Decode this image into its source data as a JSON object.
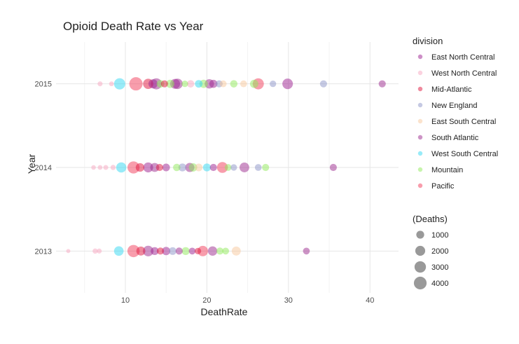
{
  "chart_data": {
    "type": "scatter",
    "title": "Opioid Death Rate vs Year",
    "xlabel": "DeathRate",
    "ylabel": "Year",
    "xlim": [
      1.5,
      43.5
    ],
    "xticks": [
      10,
      20,
      30,
      40
    ],
    "xtick_labels": [
      "10",
      "20",
      "30",
      "40"
    ],
    "y_categories": [
      "2013",
      "2014",
      "2015"
    ],
    "grid": true,
    "legend_position": "right",
    "color_legend_title": "division",
    "size_legend_title": "(Deaths)",
    "size_legend": [
      {
        "label": "1000",
        "value": 1000
      },
      {
        "label": "2000",
        "value": 2000
      },
      {
        "label": "3000",
        "value": 3000
      },
      {
        "label": "4000",
        "value": 4000
      }
    ],
    "divisions": [
      {
        "name": "East North Central",
        "color": "#9c1f8f"
      },
      {
        "name": "West North Central",
        "color": "#f7a5c0"
      },
      {
        "name": "Mid-Atlantic",
        "color": "#e0143c"
      },
      {
        "name": "New England",
        "color": "#8c94c8"
      },
      {
        "name": "East South Central",
        "color": "#f7c79c"
      },
      {
        "name": "South Atlantic",
        "color": "#9c2a8e"
      },
      {
        "name": "West South Central",
        "color": "#31d8f2"
      },
      {
        "name": "Mountain",
        "color": "#8fea5a"
      },
      {
        "name": "Pacific",
        "color": "#f23c5a"
      }
    ],
    "points": [
      {
        "year": "2015",
        "x": 6.9,
        "deaths": 150,
        "division": "West North Central"
      },
      {
        "year": "2015",
        "x": 8.3,
        "deaths": 120,
        "division": "West North Central"
      },
      {
        "year": "2015",
        "x": 9.3,
        "deaths": 2900,
        "division": "West South Central"
      },
      {
        "year": "2015",
        "x": 11.3,
        "deaths": 4500,
        "division": "Pacific"
      },
      {
        "year": "2015",
        "x": 12.8,
        "deaths": 2200,
        "division": "Mid-Atlantic"
      },
      {
        "year": "2015",
        "x": 13.4,
        "deaths": 1600,
        "division": "East North Central"
      },
      {
        "year": "2015",
        "x": 13.8,
        "deaths": 2800,
        "division": "South Atlantic"
      },
      {
        "year": "2015",
        "x": 14.3,
        "deaths": 900,
        "division": "Mountain"
      },
      {
        "year": "2015",
        "x": 14.8,
        "deaths": 700,
        "division": "Mid-Atlantic"
      },
      {
        "year": "2015",
        "x": 15.5,
        "deaths": 1200,
        "division": "Mountain"
      },
      {
        "year": "2015",
        "x": 16.1,
        "deaths": 2000,
        "division": "East North Central"
      },
      {
        "year": "2015",
        "x": 16.4,
        "deaths": 2300,
        "division": "South Atlantic"
      },
      {
        "year": "2015",
        "x": 17.3,
        "deaths": 500,
        "division": "Mountain"
      },
      {
        "year": "2015",
        "x": 18.0,
        "deaths": 800,
        "division": "West North Central"
      },
      {
        "year": "2015",
        "x": 19.0,
        "deaths": 900,
        "division": "West South Central"
      },
      {
        "year": "2015",
        "x": 19.6,
        "deaths": 1200,
        "division": "Mountain"
      },
      {
        "year": "2015",
        "x": 20.3,
        "deaths": 1700,
        "division": "South Atlantic"
      },
      {
        "year": "2015",
        "x": 20.8,
        "deaths": 1100,
        "division": "East North Central"
      },
      {
        "year": "2015",
        "x": 21.5,
        "deaths": 700,
        "division": "New England"
      },
      {
        "year": "2015",
        "x": 22.0,
        "deaths": 600,
        "division": "East South Central"
      },
      {
        "year": "2015",
        "x": 23.3,
        "deaths": 800,
        "division": "Mountain"
      },
      {
        "year": "2015",
        "x": 24.5,
        "deaths": 600,
        "division": "East South Central"
      },
      {
        "year": "2015",
        "x": 25.8,
        "deaths": 1200,
        "division": "Mountain"
      },
      {
        "year": "2015",
        "x": 26.3,
        "deaths": 2800,
        "division": "Pacific"
      },
      {
        "year": "2015",
        "x": 28.1,
        "deaths": 500,
        "division": "New England"
      },
      {
        "year": "2015",
        "x": 29.9,
        "deaths": 2400,
        "division": "East North Central"
      },
      {
        "year": "2015",
        "x": 34.3,
        "deaths": 700,
        "division": "New England"
      },
      {
        "year": "2015",
        "x": 41.5,
        "deaths": 700,
        "division": "South Atlantic"
      },
      {
        "year": "2014",
        "x": 6.1,
        "deaths": 100,
        "division": "West North Central"
      },
      {
        "year": "2014",
        "x": 6.9,
        "deaths": 120,
        "division": "West North Central"
      },
      {
        "year": "2014",
        "x": 7.6,
        "deaths": 150,
        "division": "West North Central"
      },
      {
        "year": "2014",
        "x": 8.5,
        "deaths": 200,
        "division": "West North Central"
      },
      {
        "year": "2014",
        "x": 9.5,
        "deaths": 2200,
        "division": "West South Central"
      },
      {
        "year": "2014",
        "x": 11.0,
        "deaths": 3500,
        "division": "Pacific"
      },
      {
        "year": "2014",
        "x": 11.8,
        "deaths": 1300,
        "division": "Mid-Atlantic"
      },
      {
        "year": "2014",
        "x": 12.8,
        "deaths": 2000,
        "division": "East North Central"
      },
      {
        "year": "2014",
        "x": 13.6,
        "deaths": 1500,
        "division": "South Atlantic"
      },
      {
        "year": "2014",
        "x": 14.2,
        "deaths": 700,
        "division": "Mid-Atlantic"
      },
      {
        "year": "2014",
        "x": 15.0,
        "deaths": 900,
        "division": "East North Central"
      },
      {
        "year": "2014",
        "x": 16.3,
        "deaths": 800,
        "division": "Mountain"
      },
      {
        "year": "2014",
        "x": 17.0,
        "deaths": 1000,
        "division": "New England"
      },
      {
        "year": "2014",
        "x": 17.9,
        "deaths": 1600,
        "division": "South Atlantic"
      },
      {
        "year": "2014",
        "x": 18.3,
        "deaths": 1200,
        "division": "Mountain"
      },
      {
        "year": "2014",
        "x": 19.0,
        "deaths": 900,
        "division": "East South Central"
      },
      {
        "year": "2014",
        "x": 20.0,
        "deaths": 1000,
        "division": "West South Central"
      },
      {
        "year": "2014",
        "x": 20.8,
        "deaths": 700,
        "division": "East North Central"
      },
      {
        "year": "2014",
        "x": 21.9,
        "deaths": 2600,
        "division": "Pacific"
      },
      {
        "year": "2014",
        "x": 22.6,
        "deaths": 600,
        "division": "Mountain"
      },
      {
        "year": "2014",
        "x": 23.3,
        "deaths": 500,
        "division": "New England"
      },
      {
        "year": "2014",
        "x": 24.6,
        "deaths": 1900,
        "division": "South Atlantic"
      },
      {
        "year": "2014",
        "x": 26.3,
        "deaths": 600,
        "division": "New England"
      },
      {
        "year": "2014",
        "x": 27.2,
        "deaths": 700,
        "division": "Mountain"
      },
      {
        "year": "2014",
        "x": 35.5,
        "deaths": 700,
        "division": "South Atlantic"
      },
      {
        "year": "2013",
        "x": 3.0,
        "deaths": 50,
        "division": "West North Central"
      },
      {
        "year": "2013",
        "x": 6.3,
        "deaths": 200,
        "division": "West North Central"
      },
      {
        "year": "2013",
        "x": 6.8,
        "deaths": 150,
        "division": "West North Central"
      },
      {
        "year": "2013",
        "x": 9.2,
        "deaths": 1800,
        "division": "West South Central"
      },
      {
        "year": "2013",
        "x": 11.0,
        "deaths": 3600,
        "division": "Pacific"
      },
      {
        "year": "2013",
        "x": 11.9,
        "deaths": 1500,
        "division": "Mid-Atlantic"
      },
      {
        "year": "2013",
        "x": 12.8,
        "deaths": 2400,
        "division": "South Atlantic"
      },
      {
        "year": "2013",
        "x": 13.6,
        "deaths": 1000,
        "division": "East North Central"
      },
      {
        "year": "2013",
        "x": 14.3,
        "deaths": 700,
        "division": "Mid-Atlantic"
      },
      {
        "year": "2013",
        "x": 15.0,
        "deaths": 1200,
        "division": "East North Central"
      },
      {
        "year": "2013",
        "x": 15.8,
        "deaths": 900,
        "division": "New England"
      },
      {
        "year": "2013",
        "x": 16.6,
        "deaths": 700,
        "division": "South Atlantic"
      },
      {
        "year": "2013",
        "x": 17.4,
        "deaths": 1000,
        "division": "Mountain"
      },
      {
        "year": "2013",
        "x": 18.2,
        "deaths": 600,
        "division": "East North Central"
      },
      {
        "year": "2013",
        "x": 18.9,
        "deaths": 500,
        "division": "Mid-Atlantic"
      },
      {
        "year": "2013",
        "x": 19.5,
        "deaths": 2300,
        "division": "Pacific"
      },
      {
        "year": "2013",
        "x": 20.7,
        "deaths": 1700,
        "division": "South Atlantic"
      },
      {
        "year": "2013",
        "x": 21.6,
        "deaths": 700,
        "division": "Mountain"
      },
      {
        "year": "2013",
        "x": 22.3,
        "deaths": 600,
        "division": "Mountain"
      },
      {
        "year": "2013",
        "x": 23.6,
        "deaths": 1500,
        "division": "East South Central"
      },
      {
        "year": "2013",
        "x": 32.2,
        "deaths": 600,
        "division": "South Atlantic"
      }
    ]
  }
}
